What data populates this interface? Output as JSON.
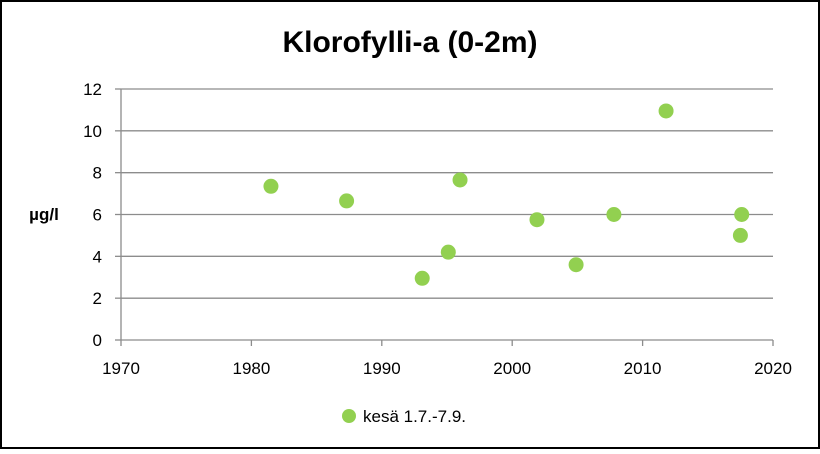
{
  "chart_data": {
    "type": "scatter",
    "title": "Klorofylli-a (0-2m)",
    "xlabel": "",
    "ylabel": "µg/l",
    "xlim": [
      1970,
      2020
    ],
    "ylim": [
      0,
      12
    ],
    "xticks": [
      1970,
      1980,
      1990,
      2000,
      2010,
      2020
    ],
    "yticks": [
      0,
      2,
      4,
      6,
      8,
      10,
      12
    ],
    "grid": "horizontal",
    "legend_position": "bottom",
    "series": [
      {
        "name": "kesä 1.7.-7.9.",
        "color": "#92d050",
        "marker": "circle",
        "points": [
          {
            "x": 1981.5,
            "y": 7.35
          },
          {
            "x": 1987.3,
            "y": 6.65
          },
          {
            "x": 1993.1,
            "y": 2.95
          },
          {
            "x": 1995.1,
            "y": 4.2
          },
          {
            "x": 1996.0,
            "y": 7.65
          },
          {
            "x": 2001.9,
            "y": 5.75
          },
          {
            "x": 2004.9,
            "y": 3.6
          },
          {
            "x": 2007.8,
            "y": 6.0
          },
          {
            "x": 2011.8,
            "y": 10.95
          },
          {
            "x": 2017.6,
            "y": 6.0
          },
          {
            "x": 2017.5,
            "y": 5.0
          }
        ]
      }
    ]
  },
  "colors": {
    "border": "#000000",
    "grid": "#8c8c8c",
    "axis": "#8c8c8c"
  }
}
